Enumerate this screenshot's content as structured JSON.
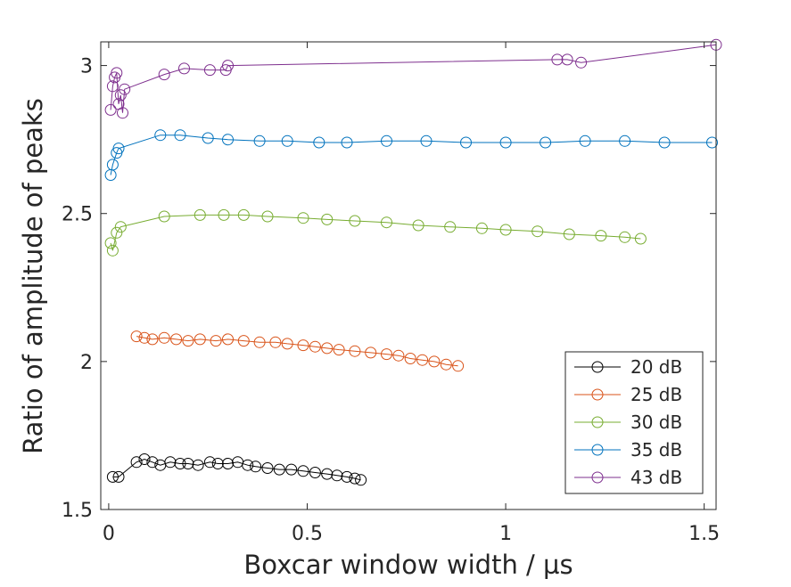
{
  "chart_data": {
    "type": "scatter",
    "title": "",
    "xlabel": "Boxcar window width / µs",
    "ylabel": "Ratio of amplitude of peaks",
    "xlim": [
      -0.02,
      1.53
    ],
    "ylim": [
      1.5,
      3.08
    ],
    "xticks": [
      0,
      0.5,
      1,
      1.5
    ],
    "xtick_labels": [
      "0",
      "0.5",
      "1",
      "1.5"
    ],
    "yticks": [
      1.5,
      2,
      2.5,
      3
    ],
    "ytick_labels": [
      "1.5",
      "2",
      "2.5",
      "3"
    ],
    "grid": false,
    "legend_position": "bottom-right",
    "marker": "open-circle",
    "series": [
      {
        "name": "20 dB",
        "color": "#000000",
        "x": [
          0.01,
          0.025,
          0.07,
          0.09,
          0.11,
          0.13,
          0.155,
          0.18,
          0.2,
          0.225,
          0.255,
          0.275,
          0.3,
          0.325,
          0.35,
          0.37,
          0.4,
          0.43,
          0.46,
          0.49,
          0.52,
          0.55,
          0.575,
          0.6,
          0.62,
          0.635
        ],
        "y": [
          1.61,
          1.61,
          1.66,
          1.67,
          1.66,
          1.65,
          1.66,
          1.655,
          1.655,
          1.65,
          1.66,
          1.655,
          1.655,
          1.66,
          1.65,
          1.645,
          1.64,
          1.635,
          1.635,
          1.63,
          1.625,
          1.62,
          1.615,
          1.61,
          1.605,
          1.6
        ]
      },
      {
        "name": "25 dB",
        "color": "#D95319",
        "x": [
          0.07,
          0.09,
          0.11,
          0.14,
          0.17,
          0.2,
          0.23,
          0.27,
          0.3,
          0.34,
          0.38,
          0.42,
          0.45,
          0.49,
          0.52,
          0.55,
          0.58,
          0.62,
          0.66,
          0.7,
          0.73,
          0.76,
          0.79,
          0.82,
          0.85,
          0.88
        ],
        "y": [
          2.085,
          2.08,
          2.075,
          2.08,
          2.075,
          2.07,
          2.075,
          2.07,
          2.075,
          2.07,
          2.065,
          2.065,
          2.06,
          2.055,
          2.05,
          2.045,
          2.04,
          2.035,
          2.03,
          2.025,
          2.02,
          2.01,
          2.005,
          2.0,
          1.99,
          1.985
        ]
      },
      {
        "name": "30 dB",
        "color": "#77AC30",
        "x": [
          0.005,
          0.01,
          0.02,
          0.03,
          0.14,
          0.23,
          0.29,
          0.34,
          0.4,
          0.49,
          0.55,
          0.62,
          0.7,
          0.78,
          0.86,
          0.94,
          1.0,
          1.08,
          1.16,
          1.24,
          1.3,
          1.34
        ],
        "y": [
          2.4,
          2.375,
          2.435,
          2.455,
          2.49,
          2.495,
          2.495,
          2.495,
          2.49,
          2.485,
          2.48,
          2.475,
          2.47,
          2.46,
          2.455,
          2.45,
          2.445,
          2.44,
          2.43,
          2.425,
          2.42,
          2.415
        ]
      },
      {
        "name": "35 dB",
        "color": "#0072BD",
        "x": [
          0.005,
          0.01,
          0.02,
          0.025,
          0.13,
          0.18,
          0.25,
          0.3,
          0.38,
          0.45,
          0.53,
          0.6,
          0.7,
          0.8,
          0.9,
          1.0,
          1.1,
          1.2,
          1.3,
          1.4,
          1.52
        ],
        "y": [
          2.63,
          2.665,
          2.705,
          2.72,
          2.765,
          2.765,
          2.755,
          2.75,
          2.745,
          2.745,
          2.74,
          2.74,
          2.745,
          2.745,
          2.74,
          2.74,
          2.74,
          2.745,
          2.745,
          2.74,
          2.74
        ]
      },
      {
        "name": "43 dB",
        "color": "#7E2F8E",
        "x": [
          0.005,
          0.01,
          0.015,
          0.02,
          0.025,
          0.03,
          0.035,
          0.04,
          0.14,
          0.19,
          0.255,
          0.295,
          0.3,
          1.13,
          1.155,
          1.19,
          1.53
        ],
        "y": [
          2.85,
          2.93,
          2.96,
          2.975,
          2.87,
          2.9,
          2.84,
          2.92,
          2.97,
          2.99,
          2.985,
          2.985,
          3.0,
          3.02,
          3.02,
          3.01,
          3.07
        ]
      }
    ]
  }
}
